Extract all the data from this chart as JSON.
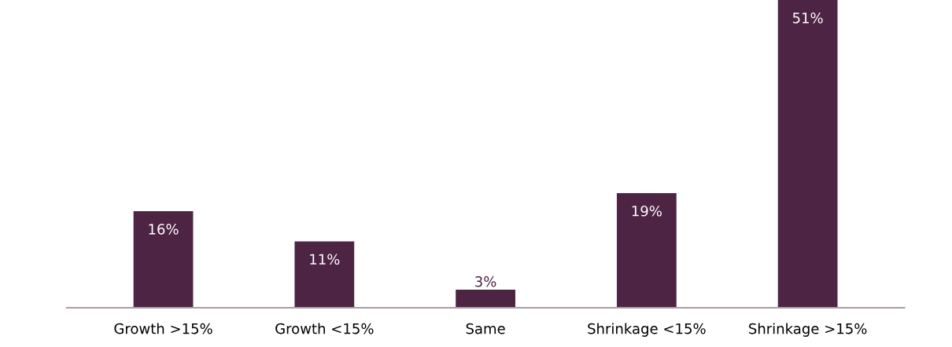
{
  "chart_data": {
    "type": "bar",
    "categories": [
      "Growth >15%",
      "Growth <15%",
      "Same",
      "Shrinkage <15%",
      "Shrinkage >15%"
    ],
    "values": [
      16,
      11,
      3,
      19,
      51
    ],
    "value_labels": [
      "16%",
      "11%",
      "3%",
      "19%",
      "51%"
    ],
    "color": "#4e2444",
    "grid": false,
    "legend": false
  }
}
